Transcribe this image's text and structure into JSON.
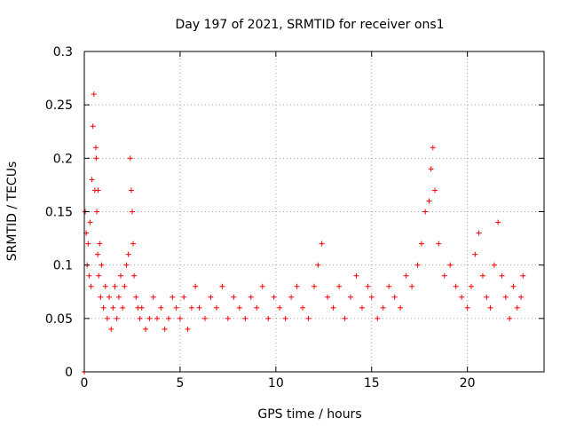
{
  "chart_data": {
    "type": "scatter",
    "title": "Day 197 of 2021, SRMTID for receiver ons1",
    "xlabel": "GPS time / hours",
    "ylabel": "SRMTID / TECUs",
    "xlim": [
      0,
      24
    ],
    "ylim": [
      0,
      0.3
    ],
    "xticks": [
      0,
      5,
      10,
      15,
      20
    ],
    "xtick_labels": [
      "0",
      "5",
      "10",
      "15",
      "20"
    ],
    "yticks": [
      0,
      0.05,
      0.1,
      0.15,
      0.2,
      0.25,
      0.3
    ],
    "ytick_labels": [
      "0",
      "0.05",
      "0.1",
      "0.15",
      "0.2",
      "0.25",
      "0.3"
    ],
    "grid": true,
    "marker": "+",
    "color": "#ff0000",
    "series": [
      {
        "name": "SRMTID",
        "x": [
          0.0,
          0.05,
          0.1,
          0.15,
          0.2,
          0.25,
          0.3,
          0.35,
          0.4,
          0.45,
          0.5,
          0.55,
          0.6,
          0.62,
          0.65,
          0.7,
          0.72,
          0.75,
          0.8,
          0.85,
          0.9,
          1.0,
          1.1,
          1.2,
          1.3,
          1.4,
          1.5,
          1.6,
          1.7,
          1.8,
          1.9,
          2.0,
          2.1,
          2.2,
          2.3,
          2.4,
          2.45,
          2.5,
          2.55,
          2.6,
          2.7,
          2.8,
          2.9,
          3.0,
          3.2,
          3.4,
          3.6,
          3.8,
          4.0,
          4.2,
          4.4,
          4.6,
          4.8,
          5.0,
          5.2,
          5.4,
          5.6,
          5.8,
          6.0,
          6.3,
          6.6,
          6.9,
          7.2,
          7.5,
          7.8,
          8.1,
          8.4,
          8.7,
          9.0,
          9.3,
          9.6,
          9.9,
          10.2,
          10.5,
          10.8,
          11.1,
          11.4,
          11.7,
          12.0,
          12.2,
          12.4,
          12.7,
          13.0,
          13.3,
          13.6,
          13.9,
          14.2,
          14.5,
          14.8,
          15.0,
          15.3,
          15.6,
          15.9,
          16.2,
          16.5,
          16.8,
          17.1,
          17.4,
          17.6,
          17.8,
          18.0,
          18.1,
          18.2,
          18.3,
          18.5,
          18.8,
          19.1,
          19.4,
          19.7,
          20.0,
          20.2,
          20.4,
          20.6,
          20.8,
          21.0,
          21.2,
          21.4,
          21.6,
          21.8,
          22.0,
          22.2,
          22.4,
          22.6,
          22.8,
          22.9
        ],
        "y": [
          0.0,
          0.15,
          0.13,
          0.1,
          0.12,
          0.09,
          0.14,
          0.08,
          0.18,
          0.23,
          0.26,
          0.17,
          0.21,
          0.2,
          0.15,
          0.11,
          0.17,
          0.09,
          0.12,
          0.07,
          0.1,
          0.06,
          0.08,
          0.05,
          0.07,
          0.04,
          0.06,
          0.08,
          0.05,
          0.07,
          0.09,
          0.06,
          0.08,
          0.1,
          0.11,
          0.2,
          0.17,
          0.15,
          0.12,
          0.09,
          0.07,
          0.06,
          0.05,
          0.06,
          0.04,
          0.05,
          0.07,
          0.05,
          0.06,
          0.04,
          0.05,
          0.07,
          0.06,
          0.05,
          0.07,
          0.04,
          0.06,
          0.08,
          0.06,
          0.05,
          0.07,
          0.06,
          0.08,
          0.05,
          0.07,
          0.06,
          0.05,
          0.07,
          0.06,
          0.08,
          0.05,
          0.07,
          0.06,
          0.05,
          0.07,
          0.08,
          0.06,
          0.05,
          0.08,
          0.1,
          0.12,
          0.07,
          0.06,
          0.08,
          0.05,
          0.07,
          0.09,
          0.06,
          0.08,
          0.07,
          0.05,
          0.06,
          0.08,
          0.07,
          0.06,
          0.09,
          0.08,
          0.1,
          0.12,
          0.15,
          0.16,
          0.19,
          0.21,
          0.17,
          0.12,
          0.09,
          0.1,
          0.08,
          0.07,
          0.06,
          0.08,
          0.11,
          0.13,
          0.09,
          0.07,
          0.06,
          0.1,
          0.14,
          0.09,
          0.07,
          0.05,
          0.08,
          0.06,
          0.07,
          0.09
        ]
      }
    ]
  }
}
